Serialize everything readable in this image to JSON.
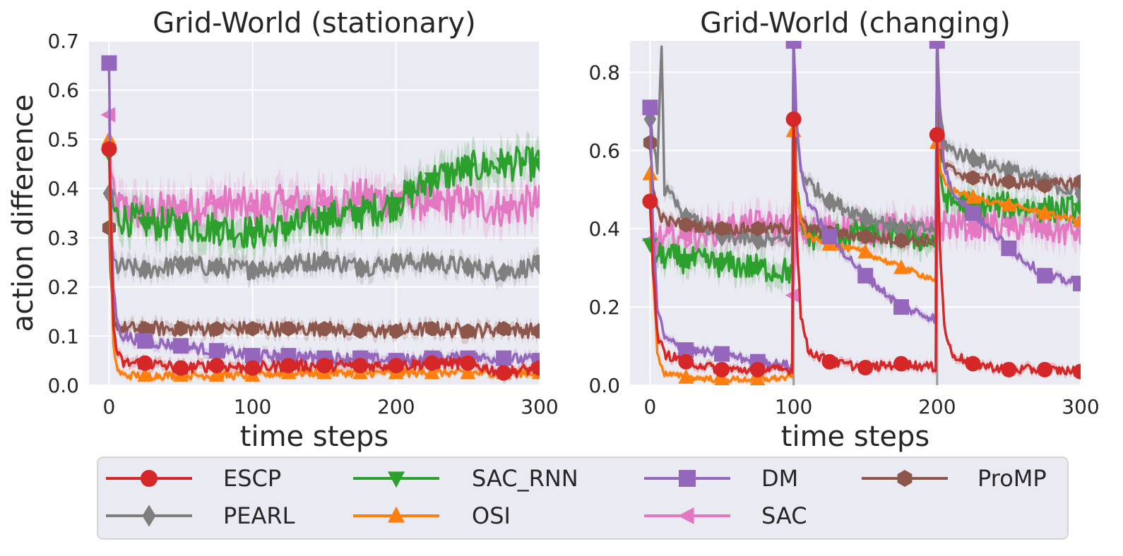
{
  "chart_data": [
    {
      "type": "line",
      "title": "Grid-World (stationary)",
      "xlabel": "time steps",
      "ylabel": "action difference",
      "xlim": [
        -14,
        300
      ],
      "ylim": [
        0,
        0.7
      ],
      "xticks": [
        0,
        100,
        200,
        300
      ],
      "yticks": [
        0.0,
        0.1,
        0.2,
        0.3,
        0.4,
        0.5,
        0.6,
        0.7
      ],
      "vlines": [],
      "series": [
        {
          "name": "ESCP",
          "x": [
            0,
            1,
            3,
            6,
            10,
            25,
            50,
            75,
            100,
            125,
            150,
            175,
            200,
            225,
            250,
            275,
            300
          ],
          "values": [
            0.48,
            0.35,
            0.12,
            0.06,
            0.045,
            0.045,
            0.035,
            0.04,
            0.035,
            0.04,
            0.04,
            0.04,
            0.04,
            0.045,
            0.045,
            0.025,
            0.035
          ]
        },
        {
          "name": "PEARL",
          "x": [
            0,
            1,
            3,
            6,
            10,
            25,
            50,
            75,
            100,
            125,
            150,
            175,
            200,
            225,
            250,
            275,
            300
          ],
          "values": [
            0.39,
            0.3,
            0.25,
            0.24,
            0.24,
            0.235,
            0.245,
            0.24,
            0.235,
            0.245,
            0.255,
            0.24,
            0.25,
            0.25,
            0.24,
            0.23,
            0.245
          ]
        },
        {
          "name": "SAC_RNN",
          "x": [
            0,
            1,
            3,
            6,
            10,
            25,
            50,
            75,
            100,
            125,
            150,
            175,
            200,
            225,
            250,
            275,
            300
          ],
          "values": [
            0.47,
            0.4,
            0.36,
            0.34,
            0.34,
            0.33,
            0.325,
            0.32,
            0.31,
            0.32,
            0.34,
            0.35,
            0.37,
            0.42,
            0.44,
            0.45,
            0.45
          ]
        },
        {
          "name": "OSI",
          "x": [
            0,
            1,
            3,
            6,
            10,
            25,
            50,
            75,
            100,
            125,
            150,
            175,
            200,
            225,
            250,
            275,
            300
          ],
          "values": [
            0.5,
            0.3,
            0.08,
            0.03,
            0.02,
            0.02,
            0.02,
            0.02,
            0.02,
            0.025,
            0.025,
            0.025,
            0.025,
            0.025,
            0.025,
            0.025,
            0.025
          ]
        },
        {
          "name": "DM",
          "x": [
            0,
            1,
            3,
            6,
            10,
            25,
            50,
            75,
            100,
            125,
            150,
            175,
            200,
            225,
            250,
            275,
            300
          ],
          "values": [
            0.655,
            0.4,
            0.2,
            0.12,
            0.1,
            0.09,
            0.08,
            0.07,
            0.06,
            0.06,
            0.055,
            0.055,
            0.05,
            0.055,
            0.055,
            0.055,
            0.05
          ]
        },
        {
          "name": "SAC",
          "x": [
            0,
            1,
            3,
            6,
            10,
            25,
            50,
            75,
            100,
            125,
            150,
            175,
            200,
            225,
            250,
            275,
            300
          ],
          "values": [
            0.55,
            0.45,
            0.38,
            0.36,
            0.36,
            0.35,
            0.36,
            0.37,
            0.36,
            0.37,
            0.37,
            0.38,
            0.38,
            0.37,
            0.37,
            0.36,
            0.37
          ]
        },
        {
          "name": "ProMP",
          "x": [
            0,
            1,
            3,
            6,
            10,
            25,
            50,
            75,
            100,
            125,
            150,
            175,
            200,
            225,
            250,
            275,
            300
          ],
          "values": [
            0.32,
            0.22,
            0.14,
            0.12,
            0.115,
            0.115,
            0.115,
            0.115,
            0.115,
            0.115,
            0.115,
            0.11,
            0.11,
            0.115,
            0.11,
            0.115,
            0.11
          ]
        }
      ]
    },
    {
      "type": "line",
      "title": "Grid-World (changing)",
      "xlabel": "time steps",
      "ylabel": "",
      "xlim": [
        -14,
        300
      ],
      "ylim": [
        0,
        0.88
      ],
      "xticks": [
        0,
        100,
        200,
        300
      ],
      "yticks": [
        0.0,
        0.2,
        0.4,
        0.6,
        0.8
      ],
      "vlines": [
        100,
        200
      ],
      "series": [
        {
          "name": "ESCP",
          "x": [
            0,
            2,
            5,
            10,
            25,
            50,
            75,
            99,
            100,
            102,
            105,
            110,
            125,
            150,
            175,
            199,
            200,
            202,
            205,
            210,
            225,
            250,
            275,
            300
          ],
          "values": [
            0.47,
            0.3,
            0.13,
            0.08,
            0.06,
            0.04,
            0.04,
            0.04,
            0.68,
            0.4,
            0.18,
            0.09,
            0.06,
            0.045,
            0.055,
            0.045,
            0.64,
            0.35,
            0.15,
            0.08,
            0.055,
            0.04,
            0.04,
            0.035
          ]
        },
        {
          "name": "PEARL",
          "x": [
            0,
            2,
            5,
            8,
            10,
            25,
            50,
            75,
            99,
            100,
            102,
            105,
            110,
            125,
            150,
            175,
            199,
            200,
            202,
            205,
            210,
            225,
            250,
            275,
            300
          ],
          "values": [
            0.68,
            0.6,
            0.56,
            0.88,
            0.5,
            0.43,
            0.38,
            0.37,
            0.37,
            0.88,
            0.65,
            0.55,
            0.52,
            0.47,
            0.43,
            0.4,
            0.4,
            0.88,
            0.7,
            0.62,
            0.6,
            0.58,
            0.55,
            0.52,
            0.49
          ]
        },
        {
          "name": "SAC_RNN",
          "x": [
            0,
            2,
            5,
            10,
            25,
            50,
            75,
            99,
            100,
            102,
            105,
            110,
            125,
            150,
            175,
            199,
            200,
            202,
            205,
            210,
            225,
            250,
            275,
            300
          ],
          "values": [
            0.36,
            0.34,
            0.33,
            0.33,
            0.32,
            0.31,
            0.3,
            0.29,
            0.88,
            0.5,
            0.4,
            0.38,
            0.38,
            0.39,
            0.38,
            0.37,
            0.88,
            0.55,
            0.48,
            0.47,
            0.46,
            0.46,
            0.45,
            0.45
          ]
        },
        {
          "name": "OSI",
          "x": [
            0,
            2,
            5,
            10,
            25,
            50,
            75,
            99,
            100,
            102,
            105,
            110,
            125,
            150,
            175,
            199,
            200,
            202,
            205,
            210,
            225,
            250,
            275,
            300
          ],
          "values": [
            0.54,
            0.3,
            0.08,
            0.03,
            0.02,
            0.015,
            0.015,
            0.02,
            0.65,
            0.5,
            0.42,
            0.38,
            0.36,
            0.34,
            0.3,
            0.27,
            0.62,
            0.55,
            0.52,
            0.5,
            0.48,
            0.46,
            0.44,
            0.42
          ]
        },
        {
          "name": "DM",
          "x": [
            0,
            2,
            5,
            10,
            25,
            50,
            75,
            99,
            100,
            102,
            105,
            110,
            125,
            150,
            175,
            199,
            200,
            202,
            205,
            210,
            225,
            250,
            275,
            300
          ],
          "values": [
            0.71,
            0.4,
            0.2,
            0.12,
            0.09,
            0.08,
            0.06,
            0.05,
            0.88,
            0.68,
            0.55,
            0.47,
            0.38,
            0.28,
            0.2,
            0.17,
            0.88,
            0.66,
            0.56,
            0.5,
            0.44,
            0.35,
            0.28,
            0.26
          ]
        },
        {
          "name": "SAC",
          "x": [
            0,
            2,
            5,
            10,
            25,
            50,
            75,
            99,
            100,
            102,
            105,
            110,
            125,
            150,
            175,
            199,
            200,
            202,
            205,
            210,
            225,
            250,
            275,
            300
          ],
          "values": [
            0.37,
            0.38,
            0.37,
            0.37,
            0.38,
            0.4,
            0.41,
            0.4,
            0.23,
            0.4,
            0.4,
            0.39,
            0.4,
            0.4,
            0.4,
            0.39,
            0.4,
            0.4,
            0.41,
            0.41,
            0.41,
            0.41,
            0.4,
            0.39
          ]
        },
        {
          "name": "ProMP",
          "x": [
            0,
            2,
            5,
            10,
            25,
            50,
            75,
            99,
            100,
            102,
            105,
            110,
            125,
            150,
            175,
            199,
            200,
            202,
            205,
            210,
            225,
            250,
            275,
            300
          ],
          "values": [
            0.62,
            0.5,
            0.45,
            0.42,
            0.41,
            0.4,
            0.4,
            0.4,
            0.88,
            0.48,
            0.42,
            0.4,
            0.39,
            0.38,
            0.37,
            0.37,
            0.88,
            0.6,
            0.56,
            0.55,
            0.53,
            0.52,
            0.51,
            0.52
          ]
        }
      ]
    }
  ],
  "legend": {
    "entries": [
      {
        "label": "ESCP",
        "color": "#d62728",
        "marker": "circle"
      },
      {
        "label": "SAC_RNN",
        "color": "#2ca02c",
        "marker": "triangle-down"
      },
      {
        "label": "DM",
        "color": "#9467bd",
        "marker": "square"
      },
      {
        "label": "ProMP",
        "color": "#8c564b",
        "marker": "hexagon"
      },
      {
        "label": "PEARL",
        "color": "#7f7f7f",
        "marker": "diamond"
      },
      {
        "label": "OSI",
        "color": "#ff7f0e",
        "marker": "triangle-up"
      },
      {
        "label": "SAC",
        "color": "#e377c2",
        "marker": "triangle-left"
      }
    ]
  }
}
